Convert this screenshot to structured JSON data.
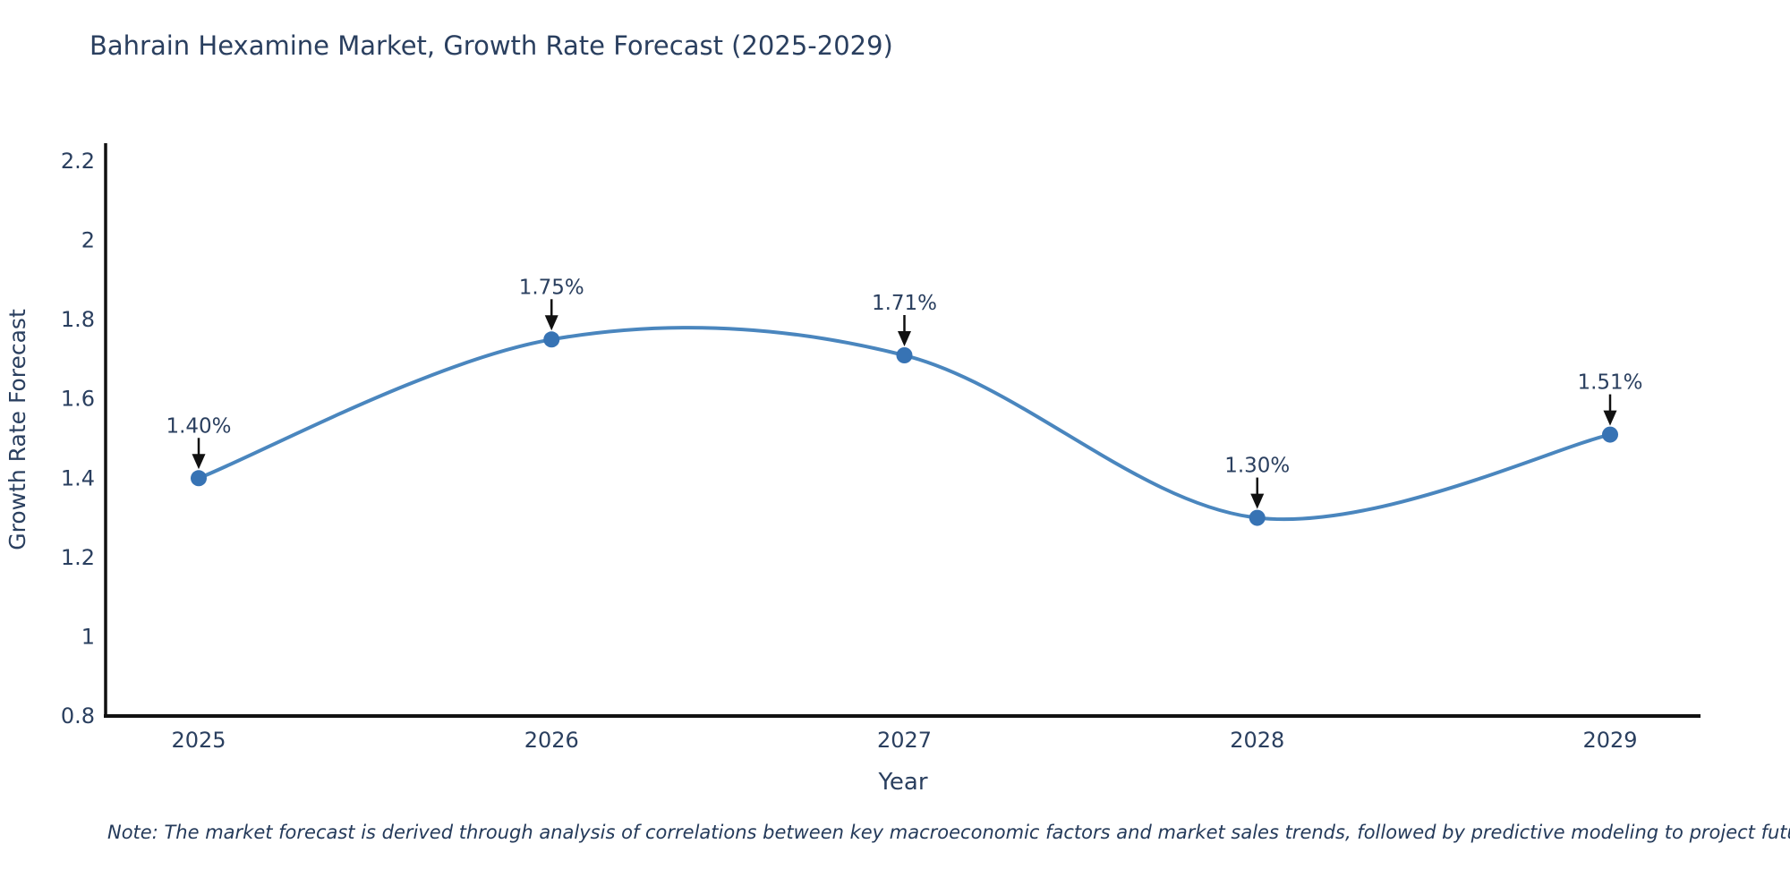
{
  "title": "Bahrain Hexamine Market, Growth Rate Forecast (2025-2029)",
  "note": "Note: The market forecast is derived through analysis of correlations between key macroeconomic factors and market sales trends, followed by predictive modeling to project future sales",
  "colors": {
    "text": "#2a3f5f",
    "axis": "#111111",
    "line": "#4a86be",
    "marker": "#3773b4",
    "arrow": "#111111",
    "background": "#ffffff"
  },
  "chart_data": {
    "type": "line",
    "title": "Bahrain Hexamine Market, Growth Rate Forecast (2025-2029)",
    "xlabel": "Year",
    "ylabel": "Growth Rate Forecast",
    "x": [
      2025,
      2026,
      2027,
      2028,
      2029
    ],
    "x_tick_labels": [
      "2025",
      "2026",
      "2027",
      "2028",
      "2029"
    ],
    "series": [
      {
        "name": "Growth Rate Forecast",
        "values": [
          1.4,
          1.75,
          1.71,
          1.3,
          1.51
        ],
        "point_labels": [
          "1.40%",
          "1.75%",
          "1.71%",
          "1.30%",
          "1.51%"
        ]
      }
    ],
    "y_ticks": [
      0.8,
      1.0,
      1.2,
      1.4,
      1.6,
      1.8,
      2.0,
      2.2
    ],
    "y_tick_labels": [
      "0.8",
      "1",
      "1.2",
      "1.4",
      "1.6",
      "1.8",
      "2",
      "2.2"
    ],
    "ylim": [
      0.8,
      2.2
    ],
    "grid": false,
    "legend_position": "none",
    "line_shape": "spline",
    "marker_style": "circle",
    "annotation_style": "value-label-with-down-arrow"
  }
}
